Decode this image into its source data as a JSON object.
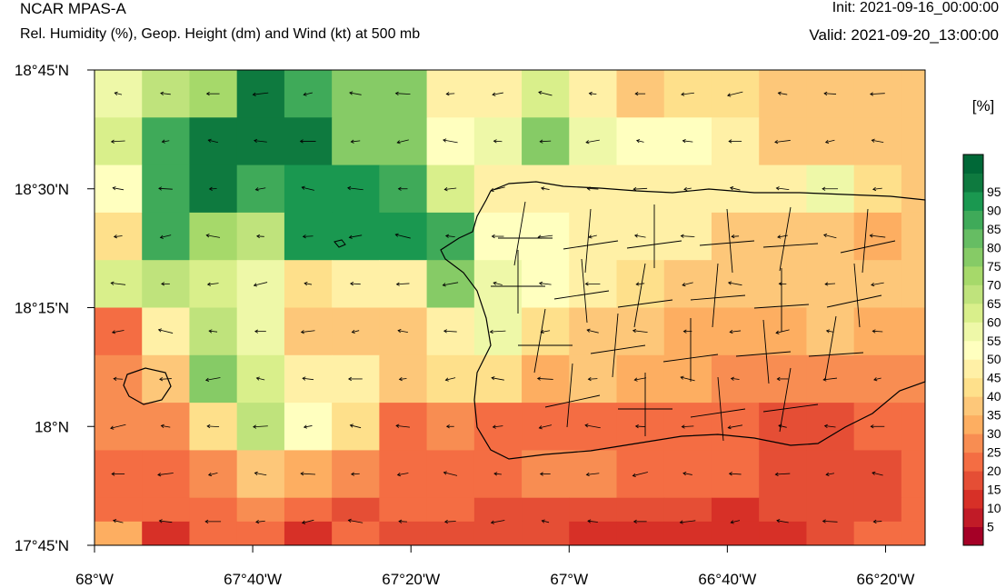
{
  "header": {
    "model": "NCAR MPAS-A",
    "subtitle": "Rel. Humidity (%), Geop. Height (dm) and Wind (kt) at 500 mb",
    "init": "Init: 2021-09-16_00:00:00",
    "valid": "Valid: 2021-09-20_13:00:00"
  },
  "chart_data": {
    "type": "heatmap",
    "title": "Rel. Humidity (%), Geop. Height (dm) and Wind (kt) at 500 mb",
    "units_label": "[%]",
    "x_ticks": [
      "68°W",
      "67°40'W",
      "67°20'W",
      "67°W",
      "66°40'W",
      "66°20'W"
    ],
    "y_ticks": [
      "18°45'N",
      "18°30'N",
      "18°15'N",
      "18°N",
      "17°45'N"
    ],
    "x_tick_values": [
      -68.0,
      -67.6667,
      -67.3333,
      -67.0,
      -66.6667,
      -66.3333
    ],
    "y_tick_values": [
      18.75,
      18.5,
      18.25,
      18.0,
      17.75
    ],
    "xlim": [
      -68.0,
      -66.25
    ],
    "ylim": [
      17.75,
      18.75
    ],
    "colorbar": {
      "levels": [
        5,
        10,
        15,
        20,
        25,
        30,
        35,
        40,
        45,
        50,
        55,
        60,
        65,
        70,
        75,
        80,
        85,
        90,
        95
      ],
      "colors": [
        "#a50026",
        "#c11b27",
        "#d73027",
        "#e54e35",
        "#f46d43",
        "#f88d52",
        "#fdae61",
        "#fdc779",
        "#fee08b",
        "#fff0a6",
        "#ffffbf",
        "#eef8a8",
        "#d9ef8b",
        "#bfe37c",
        "#a6d96a",
        "#86cb66",
        "#66bd63",
        "#3faa59",
        "#1a9850",
        "#0e7a3f",
        "#006837"
      ]
    },
    "grid_lon": [
      -67.95,
      -67.85,
      -67.75,
      -67.65,
      -67.55,
      -67.45,
      -67.35,
      -67.25,
      -67.15,
      -67.05,
      -66.95,
      -66.85,
      -66.75,
      -66.65,
      -66.55,
      -66.45,
      -66.35,
      -66.25
    ],
    "grid_lat": [
      18.7,
      18.6,
      18.5,
      18.4,
      18.3,
      18.2,
      18.1,
      18.0,
      17.9,
      17.8,
      17.75
    ],
    "rh": [
      [
        58,
        68,
        72,
        97,
        88,
        75,
        75,
        47,
        45,
        60,
        47,
        38,
        42,
        42,
        35,
        35,
        35,
        35
      ],
      [
        63,
        85,
        97,
        97,
        97,
        78,
        78,
        52,
        55,
        78,
        57,
        52,
        50,
        48,
        38,
        38,
        38,
        38
      ],
      [
        50,
        88,
        97,
        85,
        90,
        90,
        88,
        60,
        47,
        47,
        47,
        45,
        45,
        45,
        45,
        55,
        40,
        38
      ],
      [
        40,
        88,
        70,
        65,
        90,
        90,
        90,
        85,
        52,
        50,
        48,
        45,
        45,
        35,
        35,
        35,
        30,
        35
      ],
      [
        60,
        68,
        60,
        55,
        40,
        45,
        47,
        75,
        55,
        50,
        45,
        40,
        35,
        35,
        35,
        35,
        35,
        35
      ],
      [
        22,
        45,
        68,
        55,
        38,
        35,
        38,
        48,
        55,
        42,
        38,
        35,
        30,
        30,
        30,
        35,
        30,
        30
      ],
      [
        28,
        38,
        75,
        60,
        48,
        48,
        35,
        40,
        40,
        30,
        35,
        30,
        30,
        28,
        25,
        25,
        25,
        25
      ],
      [
        28,
        25,
        40,
        68,
        50,
        40,
        20,
        25,
        20,
        20,
        20,
        20,
        20,
        20,
        15,
        15,
        20,
        20
      ],
      [
        20,
        22,
        28,
        35,
        30,
        25,
        20,
        20,
        20,
        25,
        25,
        20,
        20,
        20,
        15,
        15,
        15,
        20
      ],
      [
        20,
        22,
        20,
        25,
        20,
        15,
        20,
        20,
        15,
        15,
        15,
        15,
        15,
        12,
        15,
        15,
        15,
        20
      ],
      [
        30,
        12,
        22,
        20,
        12,
        22,
        15,
        15,
        15,
        15,
        10,
        10,
        10,
        10,
        10,
        15,
        20,
        20
      ]
    ],
    "wind_note": "wind barbs shown as short arrows pointing westward"
  },
  "colors": {
    "border": "#000000",
    "coastline": "#000000"
  }
}
